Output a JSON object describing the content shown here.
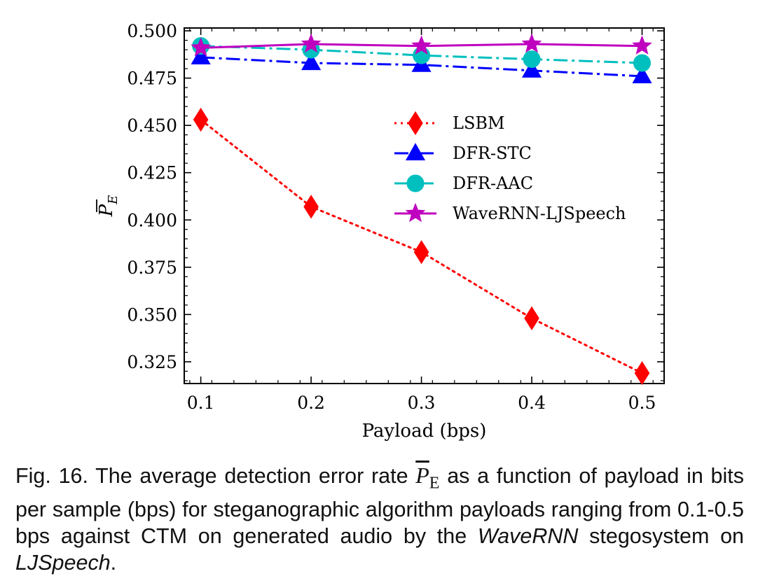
{
  "chart_data": {
    "type": "line",
    "x": [
      0.1,
      0.2,
      0.3,
      0.4,
      0.5
    ],
    "x_tick_labels": [
      "0.1",
      "0.2",
      "0.3",
      "0.4",
      "0.5"
    ],
    "y_tick_labels": [
      "0.325",
      "0.350",
      "0.375",
      "0.400",
      "0.425",
      "0.450",
      "0.475",
      "0.500"
    ],
    "y_ticks": [
      0.325,
      0.35,
      0.375,
      0.4,
      0.425,
      0.45,
      0.475,
      0.5
    ],
    "xlim": [
      0.085,
      0.52
    ],
    "ylim": [
      0.3135,
      0.5015
    ],
    "xlabel": "Payload (bps)",
    "ylabel_symbol": "P",
    "ylabel_subscript": "E",
    "legend_position": "center-right",
    "grid": false,
    "series": [
      {
        "name": "LSBM",
        "values": [
          0.453,
          0.407,
          0.383,
          0.348,
          0.319
        ],
        "color": "#ff0000",
        "marker": "diamond",
        "linestyle": "dotted"
      },
      {
        "name": "DFR-STC",
        "values": [
          0.486,
          0.483,
          0.482,
          0.479,
          0.476
        ],
        "color": "#0000ff",
        "marker": "triangle",
        "linestyle": "dashdot"
      },
      {
        "name": "DFR-AAC",
        "values": [
          0.492,
          0.49,
          0.487,
          0.485,
          0.483
        ],
        "color": "#00bfbf",
        "marker": "circle",
        "linestyle": "dashdot"
      },
      {
        "name": "WaveRNN-LJSpeech",
        "values": [
          0.491,
          0.493,
          0.492,
          0.493,
          0.492
        ],
        "color": "#bf00bf",
        "marker": "star",
        "linestyle": "solid"
      }
    ]
  },
  "caption": {
    "prefix": "Fig. 16. The average detection error rate ",
    "symbol": "P",
    "symbol_sub": "E",
    "middle": " as a function of payload in bits per sample (bps) for steganographic algorithm payloads ranging from 0.1-0.5 bps against CTM on generated audio by the ",
    "italic1": "WaveRNN",
    "middle2": " stegosystem on ",
    "italic2": "LJSpeech",
    "suffix": "."
  }
}
